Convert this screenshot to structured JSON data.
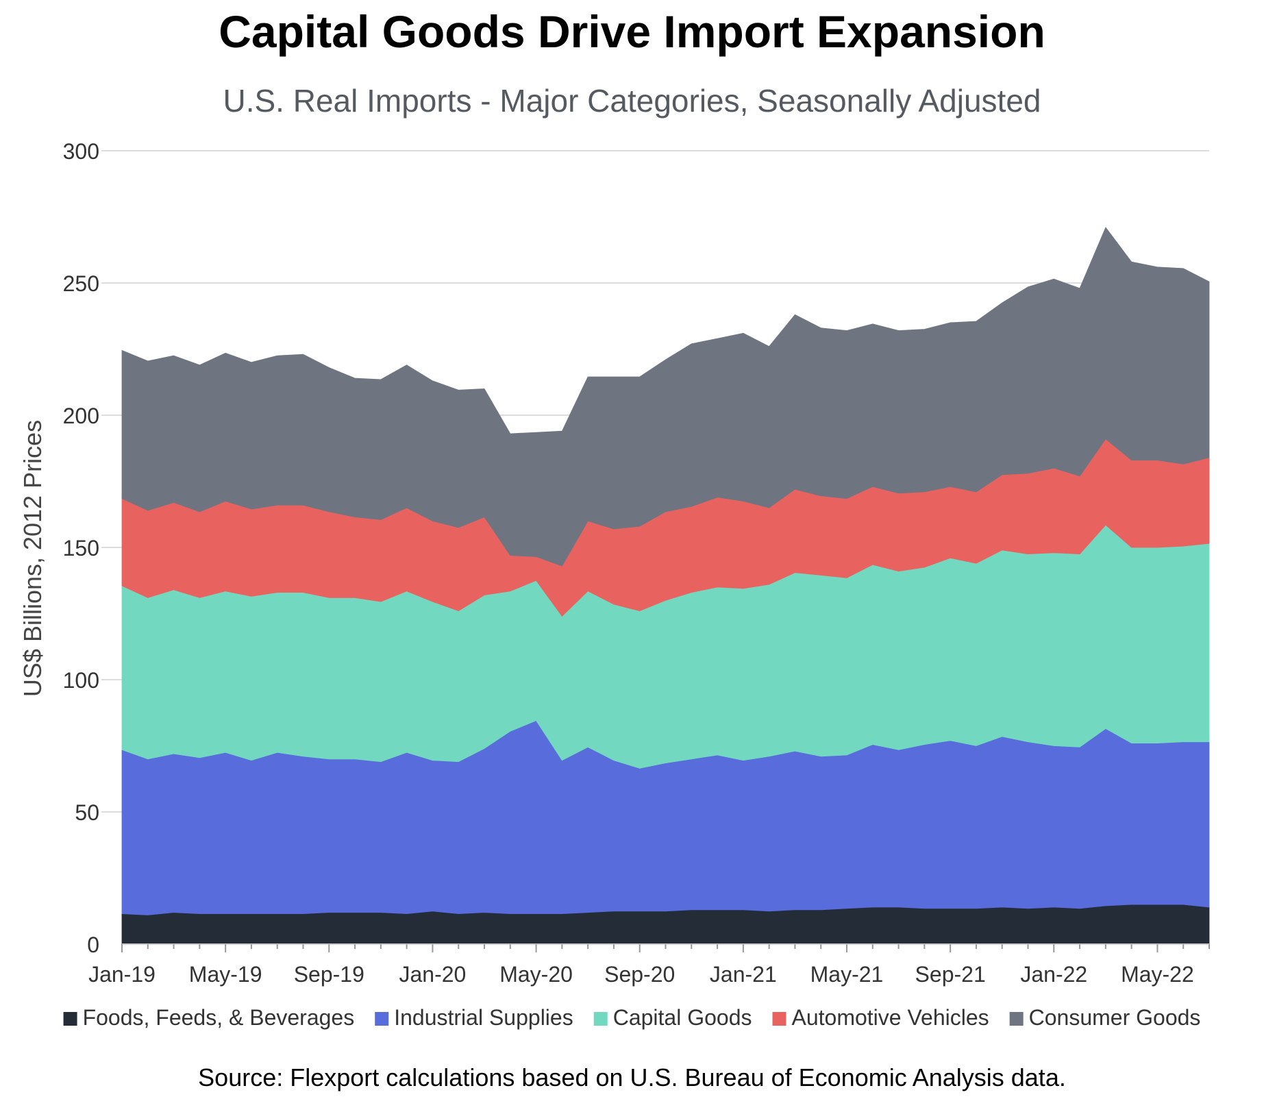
{
  "chart_data": {
    "type": "area",
    "stacked": true,
    "title": "Capital Goods Drive Import Expansion",
    "subtitle": "U.S. Real Imports - Major Categories, Seasonally Adjusted",
    "ylabel": "US$ Billions, 2012 Prices",
    "xlabel": "",
    "ylim": [
      0,
      300
    ],
    "yticks": [
      0,
      50,
      100,
      150,
      200,
      250,
      300
    ],
    "x": [
      "Jan-19",
      "Feb-19",
      "Mar-19",
      "Apr-19",
      "May-19",
      "Jun-19",
      "Jul-19",
      "Aug-19",
      "Sep-19",
      "Oct-19",
      "Nov-19",
      "Dec-19",
      "Jan-20",
      "Feb-20",
      "Mar-20",
      "Apr-20",
      "May-20",
      "Jun-20",
      "Jul-20",
      "Aug-20",
      "Sep-20",
      "Oct-20",
      "Nov-20",
      "Dec-20",
      "Jan-21",
      "Feb-21",
      "Mar-21",
      "Apr-21",
      "May-21",
      "Jun-21",
      "Jul-21",
      "Aug-21",
      "Sep-21",
      "Oct-21",
      "Nov-21",
      "Dec-21",
      "Jan-22",
      "Feb-22",
      "Mar-22",
      "Apr-22",
      "May-22",
      "Jun-22",
      "Jul-22"
    ],
    "xtick_labels": [
      "Jan-19",
      "May-19",
      "Sep-19",
      "Jan-20",
      "May-20",
      "Sep-20",
      "Jan-21",
      "May-21",
      "Sep-21",
      "Jan-22",
      "May-22"
    ],
    "series": [
      {
        "name": "Foods, Feeds, & Beverages",
        "color": "#242c38",
        "values": [
          11.5,
          11,
          12,
          11.5,
          11.5,
          11.5,
          11.5,
          11.5,
          12,
          12,
          12,
          11.5,
          12.5,
          11.5,
          12,
          11.5,
          11.5,
          11.5,
          12,
          12.5,
          12.5,
          12.5,
          13,
          13,
          13,
          12.5,
          13,
          13,
          13.5,
          14,
          14,
          13.5,
          13.5,
          13.5,
          14,
          13.5,
          14,
          13.5,
          14.5,
          15,
          15,
          15,
          14
        ]
      },
      {
        "name": "Industrial Supplies",
        "color": "#586cdc",
        "values": [
          62,
          59,
          60,
          59,
          61,
          58,
          61,
          59.5,
          58,
          58,
          57,
          61,
          57,
          57.5,
          62,
          69,
          73,
          58,
          62.5,
          57,
          54,
          56,
          57,
          58.5,
          56.5,
          58.5,
          60,
          58,
          58,
          61.5,
          59.5,
          62,
          63.5,
          61.5,
          64.5,
          63,
          61,
          61,
          67,
          61,
          61,
          61.5,
          62.5
        ]
      },
      {
        "name": "Capital Goods",
        "color": "#72d8c0",
        "values": [
          62,
          61,
          62,
          60.5,
          61,
          62,
          60.5,
          62,
          61,
          61,
          60.5,
          61,
          60,
          57,
          58,
          53,
          53,
          54.5,
          59,
          59,
          59.5,
          61.5,
          63,
          63.5,
          65,
          65,
          67.5,
          68.5,
          67,
          68,
          67.5,
          67,
          69,
          69,
          70.5,
          71,
          73,
          73,
          77,
          74,
          74,
          74,
          75
        ]
      },
      {
        "name": "Automotive Vehicles",
        "color": "#e8635f",
        "values": [
          33,
          33,
          33,
          32.5,
          34,
          33,
          33,
          33,
          32.5,
          30.5,
          31,
          31.5,
          30.5,
          31.5,
          29.5,
          13.5,
          9,
          19,
          26.5,
          28.5,
          32,
          33.5,
          32.5,
          34,
          33,
          29,
          31.5,
          30,
          30,
          29.5,
          29.5,
          28.5,
          27,
          27,
          28.5,
          30.5,
          32,
          29.5,
          32.5,
          33,
          33,
          31,
          32.5
        ]
      },
      {
        "name": "Consumer Goods",
        "color": "#6e7480",
        "values": [
          56,
          56.5,
          55.5,
          55.5,
          56,
          55.5,
          56.5,
          57,
          54.5,
          52.5,
          53,
          54,
          53,
          52,
          48.5,
          46,
          47,
          51,
          54.5,
          57.5,
          56.5,
          57.5,
          61.5,
          60,
          63.5,
          61,
          66,
          63.5,
          63.5,
          61.5,
          61.5,
          61.5,
          62,
          64.5,
          65,
          70.5,
          71.5,
          71,
          80,
          75,
          73,
          74,
          66.5
        ]
      }
    ]
  },
  "source_note": "Source: Flexport calculations based on U.S. Bureau of Economic Analysis data."
}
